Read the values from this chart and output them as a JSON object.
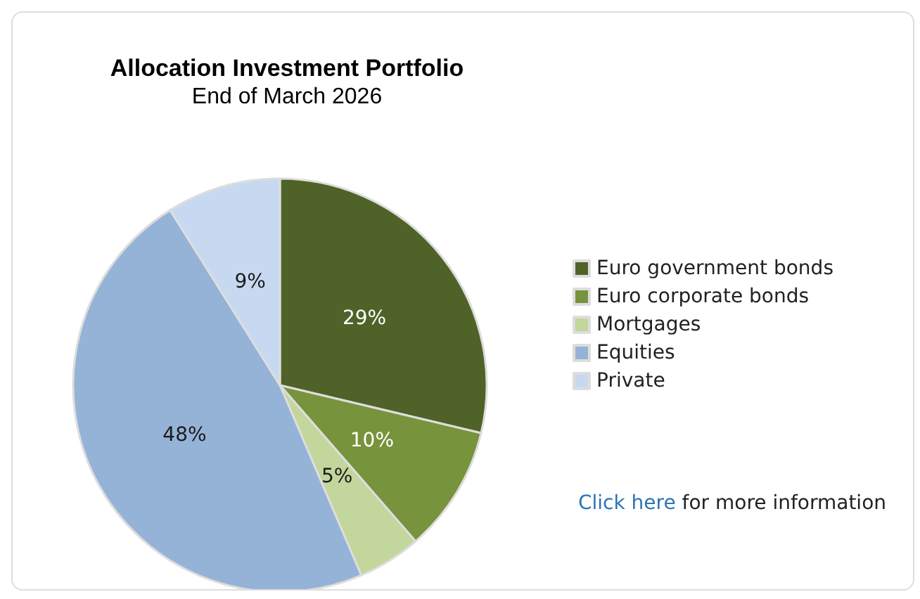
{
  "chart_data": {
    "type": "pie",
    "title": "Allocation Investment Portfolio",
    "subtitle": "End of March 2026",
    "categories": [
      "Euro government bonds",
      "Euro corporate bonds",
      "Mortgages",
      "Equities",
      "Private"
    ],
    "values": [
      29,
      10,
      5,
      48,
      9
    ],
    "colors": [
      "#4f6228",
      "#77933c",
      "#c3d69b",
      "#95b3d7",
      "#c6d9f1"
    ],
    "value_labels": [
      "29%",
      "10%",
      "5%",
      "48%",
      "9%"
    ],
    "legend": "right",
    "annotations": [
      "Click here for more information"
    ]
  }
}
